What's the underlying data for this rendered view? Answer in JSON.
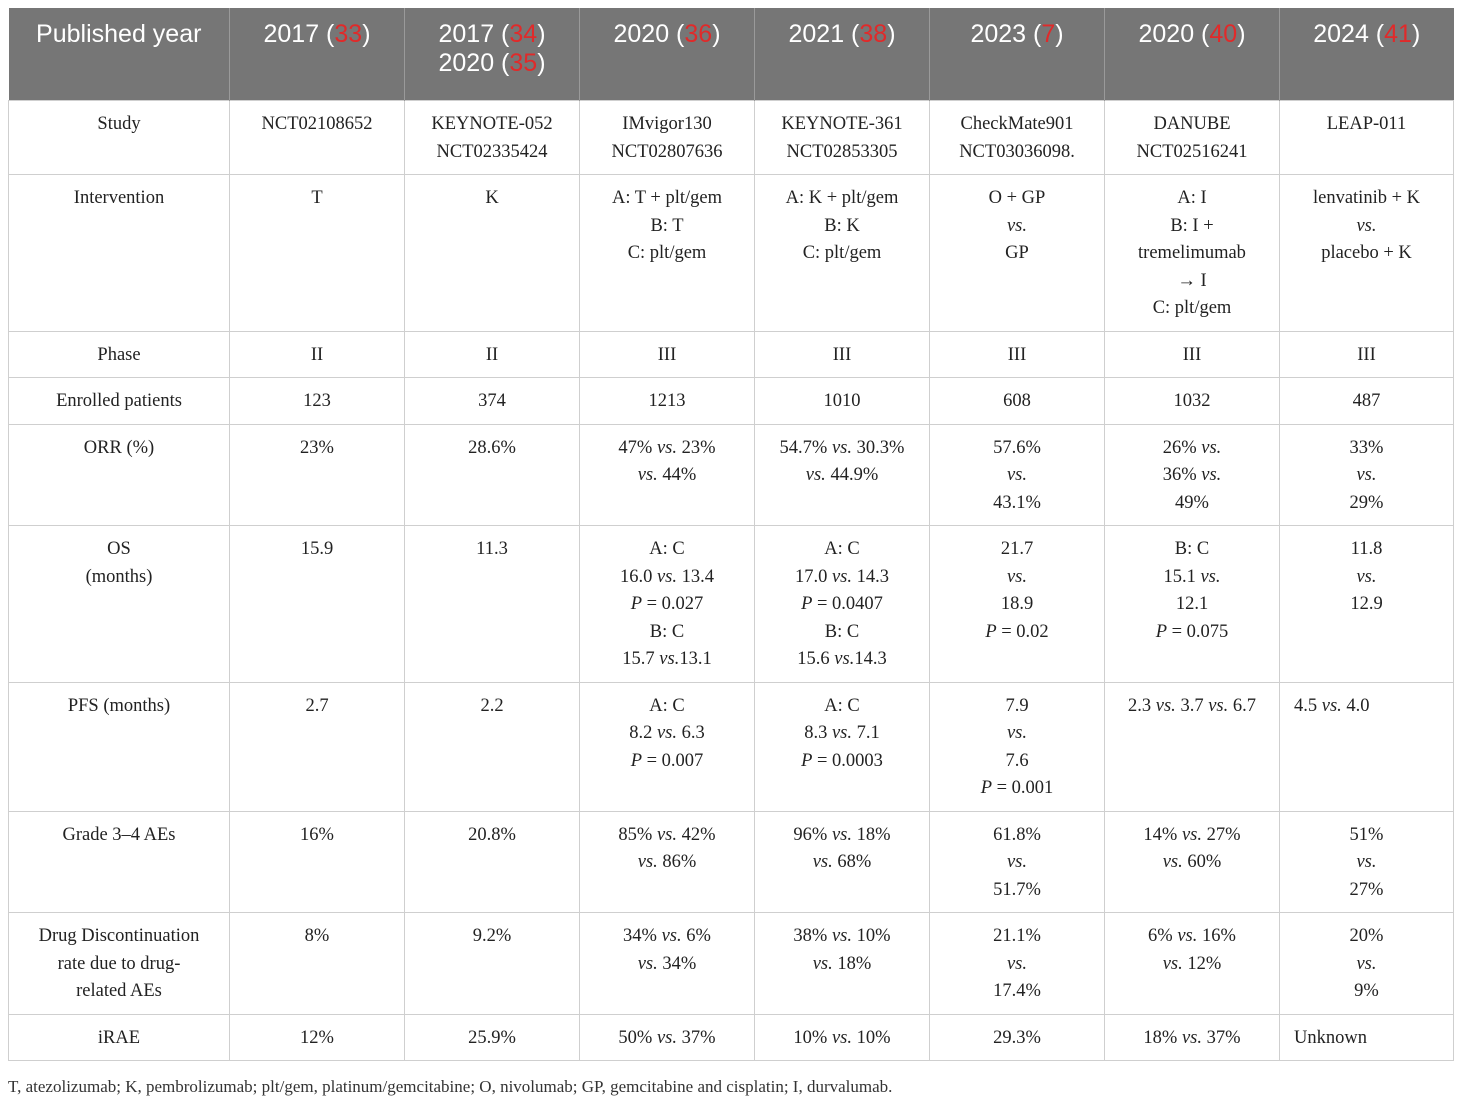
{
  "header": {
    "label": "Published year",
    "columns": [
      {
        "year": "2017",
        "refs": [
          "33"
        ]
      },
      {
        "year": "2017",
        "refs": [
          "34"
        ],
        "year2": "2020",
        "refs2": [
          "35"
        ]
      },
      {
        "year": "2020",
        "refs": [
          "36"
        ]
      },
      {
        "year": "2021",
        "refs": [
          "38"
        ]
      },
      {
        "year": "2023",
        "refs": [
          "7"
        ]
      },
      {
        "year": "2020",
        "refs": [
          "40"
        ]
      },
      {
        "year": "2024",
        "refs": [
          "41"
        ]
      }
    ]
  },
  "rows": [
    {
      "label": "Study",
      "cells": [
        [
          "NCT02108652"
        ],
        [
          "KEYNOTE-052",
          "NCT02335424"
        ],
        [
          "IMvigor130",
          "NCT02807636"
        ],
        [
          "KEYNOTE-361",
          "NCT02853305"
        ],
        [
          "CheckMate901",
          "NCT03036098."
        ],
        [
          "DANUBE",
          "NCT02516241"
        ],
        [
          "LEAP-011"
        ]
      ]
    },
    {
      "label": "Intervention",
      "cells": [
        [
          "T"
        ],
        [
          "K"
        ],
        [
          "A: T + plt/gem",
          "B: T",
          "C: plt/gem"
        ],
        [
          "A: K + plt/gem",
          "B: K",
          "C: plt/gem"
        ],
        [
          "O + GP",
          "*vs.*",
          "GP"
        ],
        [
          "A: I",
          "B: I +",
          "tremelimumab",
          "→ I",
          "C: plt/gem"
        ],
        [
          "lenvatinib + K",
          "*vs.*",
          "placebo + K"
        ]
      ]
    },
    {
      "label": "Phase",
      "cells": [
        [
          "II"
        ],
        [
          "II"
        ],
        [
          "III"
        ],
        [
          "III"
        ],
        [
          "III"
        ],
        [
          "III"
        ],
        [
          "III"
        ]
      ]
    },
    {
      "label": "Enrolled patients",
      "cells": [
        [
          "123"
        ],
        [
          "374"
        ],
        [
          "1213"
        ],
        [
          "1010"
        ],
        [
          "608"
        ],
        [
          "1032"
        ],
        [
          "487"
        ]
      ]
    },
    {
      "label": "ORR (%)",
      "cells": [
        [
          "23%"
        ],
        [
          "28.6%"
        ],
        [
          "47% *vs.* 23%",
          "*vs.* 44%"
        ],
        [
          "54.7% *vs.* 30.3%",
          "*vs.* 44.9%"
        ],
        [
          "57.6%",
          "*vs.*",
          "43.1%"
        ],
        [
          "26% *vs.*",
          "36% *vs.*",
          "49%"
        ],
        [
          "33%",
          "*vs.*",
          "29%"
        ]
      ]
    },
    {
      "label": [
        "OS",
        "(months)"
      ],
      "cells": [
        [
          "15.9"
        ],
        [
          "11.3"
        ],
        [
          "A: C",
          "16.0 *vs.* 13.4",
          "*P* = 0.027",
          "B: C",
          "15.7 *vs.*13.1"
        ],
        [
          "A: C",
          "17.0 *vs.* 14.3",
          "*P* = 0.0407",
          "B: C",
          "15.6 *vs.*14.3"
        ],
        [
          "21.7",
          "*vs.*",
          "18.9",
          "*P* = 0.02"
        ],
        [
          "B: C",
          "15.1 *vs.*",
          "12.1",
          "*P* = 0.075"
        ],
        [
          "11.8",
          "*vs.*",
          "12.9"
        ]
      ]
    },
    {
      "label": "PFS (months)",
      "cells": [
        [
          "2.7"
        ],
        [
          "2.2"
        ],
        [
          "A: C",
          "8.2 *vs.* 6.3",
          "*P* = 0.007"
        ],
        [
          "A: C",
          "8.3 *vs.* 7.1",
          "*P* = 0.0003"
        ],
        [
          "7.9",
          "*vs.*",
          "7.6",
          "*P* = 0.001"
        ],
        [
          "2.3 *vs.* 3.7 *vs.* 6.7"
        ],
        [
          "4.5 *vs.* 4.0"
        ]
      ],
      "leftCols": [
        6
      ]
    },
    {
      "label": "Grade 3–4 AEs",
      "cells": [
        [
          "16%"
        ],
        [
          "20.8%"
        ],
        [
          "85% *vs.* 42%",
          "*vs.* 86%"
        ],
        [
          "96% *vs.* 18%",
          "*vs.* 68%"
        ],
        [
          "61.8%",
          "*vs.*",
          "51.7%"
        ],
        [
          "14% *vs.* 27%",
          "*vs.* 60%"
        ],
        [
          "51%",
          "*vs.*",
          "27%"
        ]
      ]
    },
    {
      "label": [
        "Drug Discontinuation",
        "rate due to drug-",
        "related AEs"
      ],
      "cells": [
        [
          "8%"
        ],
        [
          "9.2%"
        ],
        [
          "34% *vs.* 6%",
          "*vs.* 34%"
        ],
        [
          "38% *vs.* 10%",
          "*vs.* 18%"
        ],
        [
          "21.1%",
          "*vs.*",
          "17.4%"
        ],
        [
          "6% *vs.* 16%",
          "*vs.* 12%"
        ],
        [
          "20%",
          "*vs.*",
          "9%"
        ]
      ]
    },
    {
      "label": "iRAE",
      "cells": [
        [
          "12%"
        ],
        [
          "25.9%"
        ],
        [
          "50% *vs.* 37%"
        ],
        [
          "10% *vs.* 10%"
        ],
        [
          "29.3%"
        ],
        [
          "18% *vs.* 37%"
        ],
        [
          "Unknown"
        ]
      ],
      "leftCols": [
        6
      ]
    }
  ],
  "footnote": "T, atezolizumab; K, pembrolizumab; plt/gem, platinum/gemcitabine; O, nivolumab; GP, gemcitabine and cisplatin; I, durvalumab."
}
